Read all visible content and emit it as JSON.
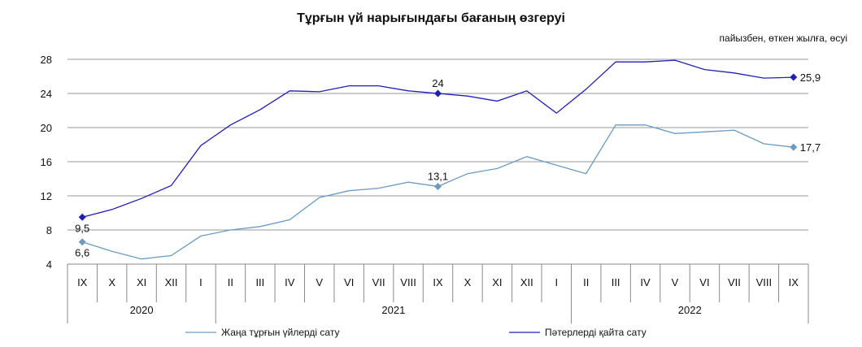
{
  "chart_data": {
    "type": "line",
    "title": "Тұрғын үй нарығындағы бағаның өзгеруі",
    "subtitle": "пайызбен, өткен жылға, өсуі",
    "categories": [
      "IX",
      "X",
      "XI",
      "XII",
      "I",
      "II",
      "III",
      "IV",
      "V",
      "VI",
      "VII",
      "VIII",
      "IX",
      "X",
      "XI",
      "XII",
      "I",
      "II",
      "III",
      "IV",
      "V",
      "VI",
      "VII",
      "VIII",
      "IX"
    ],
    "year_groups": [
      {
        "label": "2020",
        "start": 0,
        "end": 4
      },
      {
        "label": "2021",
        "start": 5,
        "end": 16
      },
      {
        "label": "2022",
        "start": 17,
        "end": 24
      }
    ],
    "ylim": [
      4,
      28
    ],
    "yticks": [
      4,
      8,
      12,
      16,
      20,
      24,
      28
    ],
    "grid": true,
    "legend_position": "bottom",
    "series": [
      {
        "name": "Жаңа тұрғын үйлерді сату",
        "color": "#6c9ac3",
        "values": [
          6.6,
          5.5,
          4.6,
          5.0,
          7.3,
          8.0,
          8.4,
          9.2,
          11.8,
          12.6,
          12.9,
          13.6,
          13.1,
          14.6,
          15.2,
          16.6,
          15.6,
          14.6,
          20.3,
          20.3,
          19.3,
          19.5,
          19.7,
          18.1,
          17.7
        ],
        "labeled_points": [
          {
            "index": 0,
            "label": "6,6",
            "pos": "below"
          },
          {
            "index": 12,
            "label": "13,1",
            "pos": "above"
          },
          {
            "index": 24,
            "label": "17,7",
            "pos": "right"
          }
        ]
      },
      {
        "name": "Пәтерлерді қайта сату",
        "color": "#1f1fb4",
        "values": [
          9.5,
          10.4,
          11.7,
          13.2,
          17.9,
          20.3,
          22.1,
          24.3,
          24.2,
          24.9,
          24.9,
          24.3,
          24.0,
          23.7,
          23.1,
          24.3,
          21.7,
          24.5,
          27.7,
          27.7,
          27.9,
          26.8,
          26.4,
          25.8,
          25.9
        ],
        "labeled_points": [
          {
            "index": 0,
            "label": "9,5",
            "pos": "below"
          },
          {
            "index": 12,
            "label": "24",
            "pos": "above"
          },
          {
            "index": 24,
            "label": "25,9",
            "pos": "right"
          }
        ]
      }
    ]
  }
}
